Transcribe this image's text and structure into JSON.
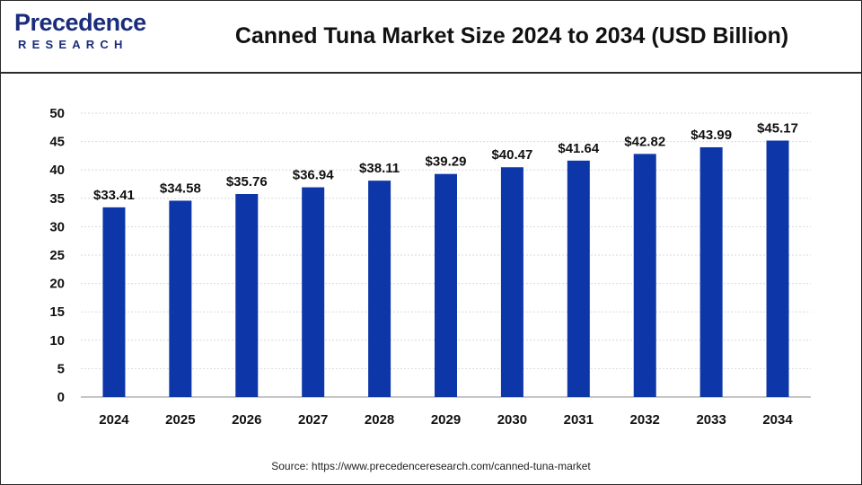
{
  "brand": {
    "logo_top": "recedence",
    "logo_p": "P",
    "logo_bottom": "RESEARCH",
    "color": "#1a2d7c"
  },
  "source_text": "Source: https://www.precedenceresearch.com/canned-tuna-market",
  "chart_data": {
    "type": "bar",
    "title": "Canned Tuna Market Size 2024 to 2034 (USD Billion)",
    "xlabel": "",
    "ylabel": "",
    "categories": [
      "2024",
      "2025",
      "2026",
      "2027",
      "2028",
      "2029",
      "2030",
      "2031",
      "2032",
      "2033",
      "2034"
    ],
    "values": [
      33.41,
      34.58,
      35.76,
      36.94,
      38.11,
      39.29,
      40.47,
      41.64,
      42.82,
      43.99,
      45.17
    ],
    "data_labels": [
      "$33.41",
      "$34.58",
      "$35.76",
      "$36.94",
      "$38.11",
      "$39.29",
      "$40.47",
      "$41.64",
      "$42.82",
      "$43.99",
      "$45.17"
    ],
    "ylim": [
      0,
      50
    ],
    "yticks": [
      0,
      5,
      10,
      15,
      20,
      25,
      30,
      35,
      40,
      45,
      50
    ],
    "grid": true,
    "bar_color": "#0d36a8",
    "legend": "none"
  }
}
